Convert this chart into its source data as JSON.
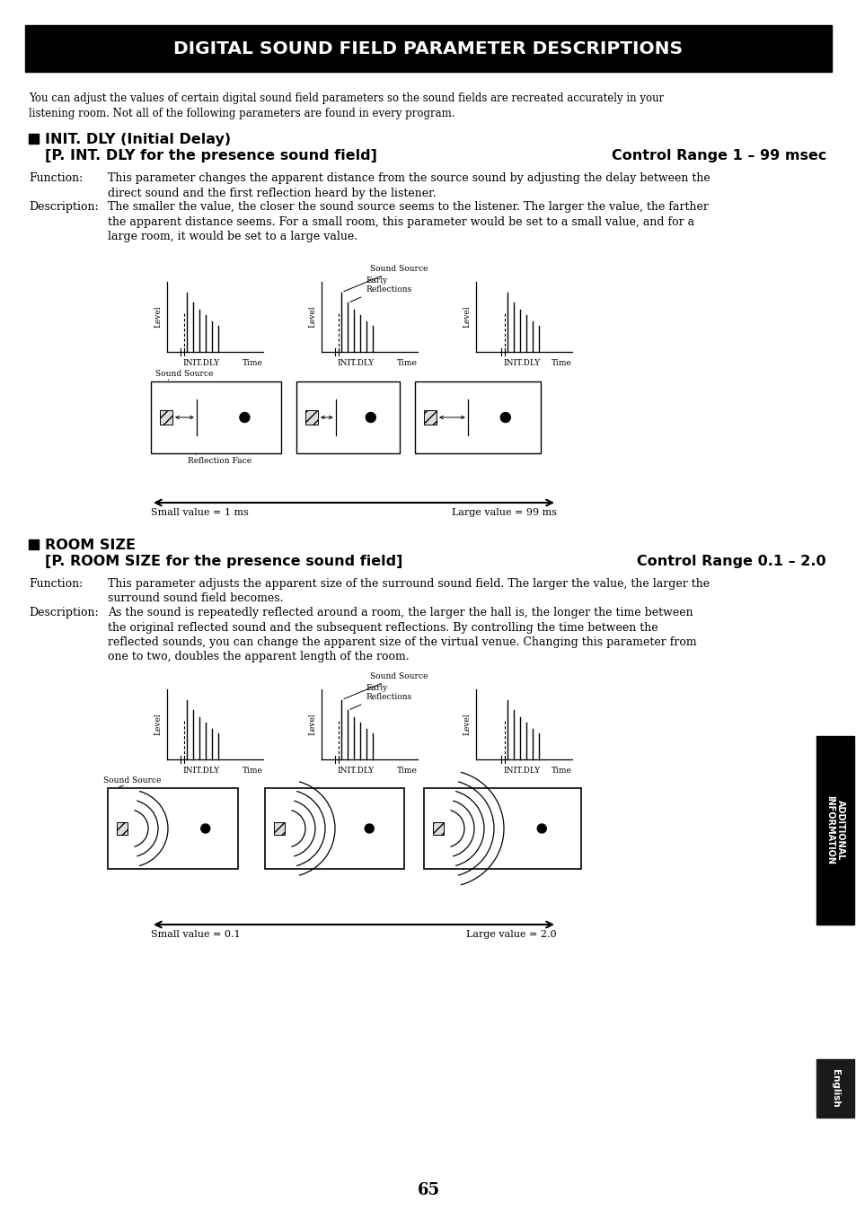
{
  "title": "DIGITAL SOUND FIELD PARAMETER DESCRIPTIONS",
  "title_bg": "#000000",
  "title_fg": "#ffffff",
  "page_bg": "#ffffff",
  "page_number": "65",
  "intro_text": "You can adjust the values of certain digital sound field parameters so the sound fields are recreated accurately in your\nlistening room. Not all of the following parameters are found in every program.",
  "section1_heading1": "INIT. DLY (Initial Delay)",
  "section1_heading2": "[P. INT. DLY for the presence sound field]",
  "section1_heading2_right": "Control Range 1 – 99 msec",
  "section1_function_label": "Function:",
  "section1_function_text": "This parameter changes the apparent distance from the source sound by adjusting the delay between the\ndirect sound and the first reflection heard by the listener.",
  "section1_desc_label": "Description:",
  "section1_desc_text": "The smaller the value, the closer the sound source seems to the listener. The larger the value, the farther\nthe apparent distance seems. For a small room, this parameter would be set to a small value, and for a\nlarge room, it would be set to a large value.",
  "section1_arrow_left": "Small value = 1 ms",
  "section1_arrow_right": "Large value = 99 ms",
  "section2_heading1": "ROOM SIZE",
  "section2_heading2": "[P. ROOM SIZE for the presence sound field]",
  "section2_heading2_right": "Control Range 0.1 – 2.0",
  "section2_function_label": "Function:",
  "section2_function_text": "This parameter adjusts the apparent size of the surround sound field. The larger the value, the larger the\nsurround sound field becomes.",
  "section2_desc_label": "Description:",
  "section2_desc_text": "As the sound is repeatedly reflected around a room, the larger the hall is, the longer the time between\nthe original reflected sound and the subsequent reflections. By controlling the time between the\nreflected sounds, you can change the apparent size of the virtual venue. Changing this parameter from\none to two, doubles the apparent length of the room.",
  "section2_label_sound_source": "Sound Source",
  "section2_arrow_left": "Small value = 0.1",
  "section2_arrow_right": "Large value = 2.0",
  "sidebar_text": "ADDITIONAL\nINFORMATION",
  "sidebar_bottom": "English"
}
